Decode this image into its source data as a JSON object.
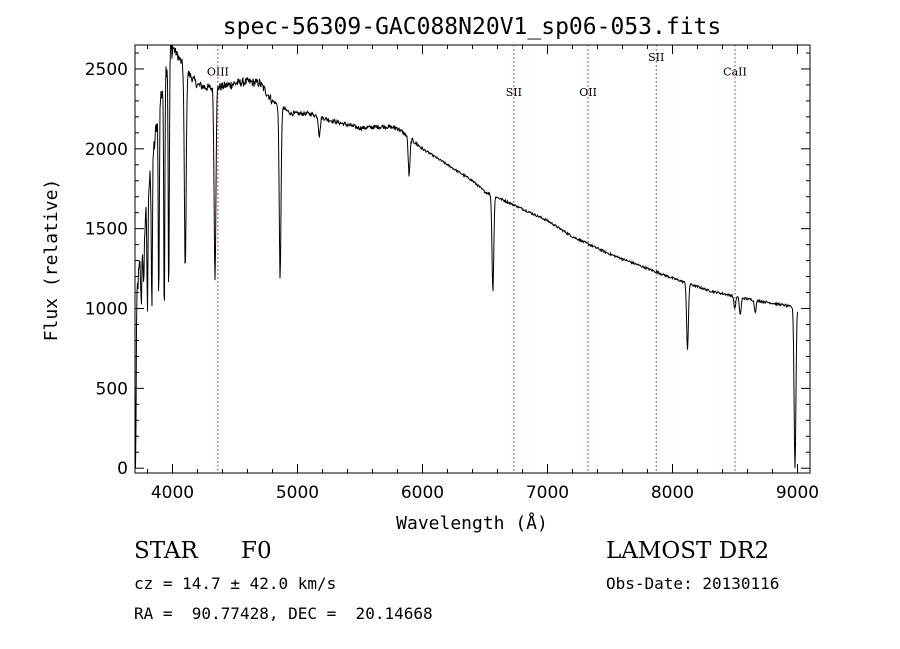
{
  "chart_data": {
    "type": "line",
    "title": "spec-56309-GAC088N20V1_sp06-053.fits",
    "xlabel": "Wavelength (Å)",
    "ylabel": "Flux (relative)",
    "xlim": [
      3700,
      9100
    ],
    "ylim": [
      -30,
      2650
    ],
    "xticks": [
      "4000",
      "5000",
      "6000",
      "7000",
      "8000",
      "9000"
    ],
    "yticks": [
      "0",
      "500",
      "1000",
      "1500",
      "2000",
      "2500"
    ],
    "grid": false,
    "continuum": [
      {
        "x": 3700,
        "y": 1000
      },
      {
        "x": 3800,
        "y": 1700
      },
      {
        "x": 3900,
        "y": 2300
      },
      {
        "x": 3960,
        "y": 2550
      },
      {
        "x": 4000,
        "y": 2640
      },
      {
        "x": 4100,
        "y": 2500
      },
      {
        "x": 4200,
        "y": 2400
      },
      {
        "x": 4300,
        "y": 2380
      },
      {
        "x": 4400,
        "y": 2390
      },
      {
        "x": 4500,
        "y": 2410
      },
      {
        "x": 4600,
        "y": 2420
      },
      {
        "x": 4700,
        "y": 2410
      },
      {
        "x": 4800,
        "y": 2300
      },
      {
        "x": 4950,
        "y": 2220
      },
      {
        "x": 5100,
        "y": 2220
      },
      {
        "x": 5300,
        "y": 2170
      },
      {
        "x": 5500,
        "y": 2130
      },
      {
        "x": 5700,
        "y": 2140
      },
      {
        "x": 5800,
        "y": 2130
      },
      {
        "x": 6000,
        "y": 2000
      },
      {
        "x": 6200,
        "y": 1900
      },
      {
        "x": 6400,
        "y": 1800
      },
      {
        "x": 6500,
        "y": 1730
      },
      {
        "x": 6700,
        "y": 1660
      },
      {
        "x": 7000,
        "y": 1550
      },
      {
        "x": 7200,
        "y": 1450
      },
      {
        "x": 7500,
        "y": 1340
      },
      {
        "x": 7800,
        "y": 1250
      },
      {
        "x": 8000,
        "y": 1190
      },
      {
        "x": 8300,
        "y": 1110
      },
      {
        "x": 8600,
        "y": 1060
      },
      {
        "x": 8900,
        "y": 1020
      },
      {
        "x": 9000,
        "y": 1000
      }
    ],
    "absorption_features": [
      {
        "x": 3705,
        "y": 0
      },
      {
        "x": 3750,
        "y": 1020
      },
      {
        "x": 3770,
        "y": 1100
      },
      {
        "x": 3800,
        "y": 1000
      },
      {
        "x": 3835,
        "y": 1000
      },
      {
        "x": 3890,
        "y": 1050
      },
      {
        "x": 3934,
        "y": 950
      },
      {
        "x": 3970,
        "y": 1050
      },
      {
        "x": 4102,
        "y": 1230
      },
      {
        "x": 4340,
        "y": 1200
      },
      {
        "x": 4861,
        "y": 1190
      },
      {
        "x": 5175,
        "y": 2080
      },
      {
        "x": 5893,
        "y": 1830
      },
      {
        "x": 6563,
        "y": 1110
      },
      {
        "x": 8120,
        "y": 740
      },
      {
        "x": 8498,
        "y": 1000
      },
      {
        "x": 8542,
        "y": 960
      },
      {
        "x": 8662,
        "y": 980
      },
      {
        "x": 8980,
        "y": 0
      }
    ],
    "line_markers": [
      {
        "label": "OIII",
        "x": 4363,
        "y_label": 2460
      },
      {
        "label": "SII",
        "x": 6731,
        "y_label": 2330
      },
      {
        "label": "OII",
        "x": 7325,
        "y_label": 2330
      },
      {
        "label": "SII",
        "x": 7870,
        "y_label": 2550
      },
      {
        "label": "CaII",
        "x": 8500,
        "y_label": 2460
      }
    ]
  },
  "info": {
    "object_type": "STAR",
    "spectral_class": "F0",
    "survey": "LAMOST DR2",
    "cz": "cz = 14.7 ± 42.0 km/s",
    "obs_date": "Obs-Date: 20130116",
    "coords": "RA =  90.77428, DEC =  20.14668"
  },
  "colors": {
    "spectrum": "#000000",
    "marker": "#a02020",
    "axes": "#000000",
    "background": "#ffffff"
  }
}
